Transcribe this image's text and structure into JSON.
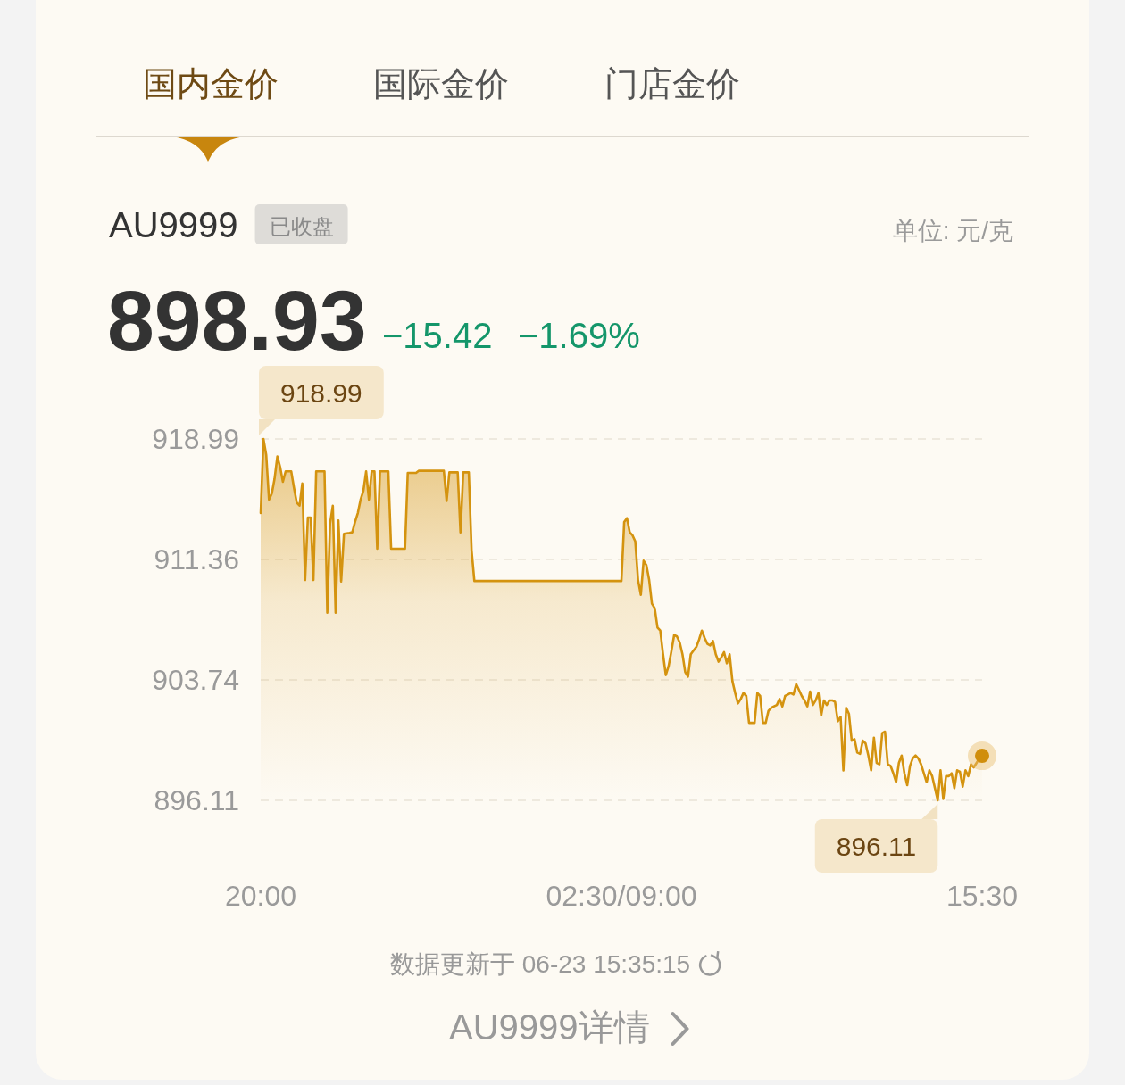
{
  "chart_data": {
    "type": "area",
    "title": "AU9999",
    "subtitle": "已收盘",
    "categories": [
      "20:00",
      null,
      null,
      null,
      null,
      null,
      null,
      null,
      null,
      null,
      null,
      null,
      null,
      null,
      null,
      null,
      null,
      null,
      null,
      null,
      null,
      null,
      null,
      null,
      null,
      null,
      null,
      null,
      null,
      null,
      null,
      null,
      null,
      null,
      null,
      null,
      null,
      null,
      null,
      null,
      null,
      null,
      null,
      null,
      null,
      null,
      null,
      null,
      null,
      null,
      null,
      null,
      null,
      null,
      null,
      null,
      null,
      null,
      null,
      null,
      null,
      null,
      null,
      null,
      null,
      null,
      null,
      null,
      null,
      null,
      null,
      null,
      null,
      null,
      null,
      null,
      null,
      null,
      null,
      null,
      null,
      null,
      null,
      null,
      null,
      null,
      null,
      null,
      null,
      null,
      null,
      null,
      null,
      null,
      null,
      null,
      null,
      null,
      null,
      null,
      null,
      null,
      null,
      null,
      null,
      null,
      null,
      null,
      null,
      null,
      null,
      null,
      null,
      null,
      null,
      null,
      null,
      null,
      null,
      null,
      null,
      null,
      null,
      null,
      null,
      null,
      null,
      null,
      null,
      null,
      "02:30/09:00",
      null,
      null,
      null,
      null,
      null,
      null,
      null,
      null,
      null,
      null,
      null,
      null,
      null,
      null,
      null,
      null,
      null,
      null,
      null,
      null,
      null,
      null,
      null,
      null,
      null,
      null,
      null,
      null,
      null,
      null,
      null,
      null,
      null,
      null,
      null,
      null,
      null,
      null,
      null,
      null,
      null,
      null,
      null,
      null,
      null,
      null,
      null,
      null,
      null,
      null,
      null,
      null,
      null,
      null,
      null,
      null,
      null,
      null,
      null,
      null,
      null,
      null,
      null,
      null,
      null,
      null,
      null,
      null,
      null,
      null,
      null,
      null,
      null,
      null,
      null,
      null,
      null,
      null,
      null,
      null,
      null,
      null,
      null,
      null,
      null,
      null,
      null,
      null,
      null,
      null,
      null,
      null,
      null,
      null,
      null,
      null,
      null,
      null,
      null,
      null,
      null,
      null,
      null,
      null,
      null,
      null,
      null,
      null,
      null,
      null,
      null,
      null,
      null,
      null,
      null,
      null,
      null,
      null,
      null,
      null,
      null,
      null,
      null,
      null,
      null,
      null,
      null,
      null,
      null,
      "15:30"
    ],
    "series": [
      {
        "color": "#d4930f",
        "values": [
          914.3,
          918.99,
          917.97,
          915.15,
          915.53,
          916.47,
          917.88,
          917.22,
          916.28,
          916.94,
          916.94,
          916.94,
          915.9,
          914.96,
          914.77,
          916.18,
          910.06,
          914.02,
          914.02,
          910.06,
          916.94,
          916.94,
          916.94,
          916.94,
          907.99,
          913.64,
          914.77,
          907.99,
          913.83,
          909.97,
          912.98,
          913.02,
          913.04,
          913.08,
          913.74,
          914.3,
          915.15,
          915.71,
          916.94,
          915.15,
          916.94,
          916.94,
          912.04,
          916.94,
          916.94,
          916.94,
          916.94,
          912.04,
          912.04,
          912.04,
          912.04,
          912.04,
          912.04,
          916.84,
          916.84,
          916.84,
          916.84,
          916.98,
          916.98,
          916.98,
          916.98,
          916.98,
          916.98,
          916.98,
          916.98,
          916.98,
          916.98,
          915.06,
          916.88,
          916.88,
          916.88,
          916.88,
          913.08,
          916.88,
          916.88,
          916.88,
          911.95,
          910.0,
          910.0,
          910.0,
          910.0,
          910.0,
          910.0,
          910.0,
          910.0,
          910.0,
          910.0,
          910.0,
          910.0,
          910.0,
          910.0,
          910.0,
          910.0,
          910.0,
          910.0,
          910.0,
          910.0,
          910.0,
          910.0,
          910.0,
          910.0,
          910.0,
          910.0,
          910.0,
          910.0,
          910.0,
          910.0,
          910.0,
          910.0,
          910.0,
          910.0,
          910.0,
          910.0,
          910.0,
          910.0,
          910.0,
          910.0,
          910.0,
          910.0,
          910.0,
          910.0,
          910.0,
          910.0,
          910.0,
          910.0,
          910.0,
          910.0,
          910.0,
          910.0,
          910.0,
          910.0,
          913.74,
          913.98,
          913.08,
          912.89,
          912.51,
          910.06,
          909.12,
          911.29,
          911.0,
          910.06,
          908.56,
          908.28,
          907.05,
          906.86,
          905.36,
          904.04,
          904.6,
          905.54,
          906.58,
          906.49,
          906.11,
          905.36,
          904.23,
          903.94,
          905.36,
          905.6,
          905.83,
          906.3,
          906.86,
          906.39,
          906.02,
          905.92,
          906.2,
          905.36,
          904.89,
          905.17,
          905.49,
          904.79,
          905.36,
          903.66,
          902.91,
          902.25,
          902.53,
          902.91,
          902.72,
          901.02,
          901.02,
          901.02,
          902.91,
          902.72,
          901.02,
          901.02,
          901.78,
          901.97,
          902.06,
          902.15,
          902.53,
          902.06,
          902.72,
          902.81,
          902.91,
          902.81,
          903.47,
          903.1,
          902.72,
          902.44,
          902.06,
          903.0,
          902.15,
          902.44,
          902.91,
          901.49,
          902.44,
          902.15,
          902.44,
          902.44,
          902.34,
          901.12,
          901.4,
          898.01,
          901.97,
          901.59,
          899.89,
          899.99,
          899.14,
          899.05,
          899.89,
          899.71,
          898.95,
          898.01,
          900.08,
          898.48,
          898.39,
          900.37,
          900.46,
          898.39,
          898.29,
          897.82,
          897.26,
          898.48,
          898.95,
          897.82,
          897.07,
          898.29,
          898.77,
          898.95,
          898.77,
          898.39,
          897.82,
          897.26,
          898.01,
          897.64,
          896.88,
          896.11,
          898.01,
          896.2,
          897.64,
          897.64,
          897.82,
          896.88,
          898.01,
          897.92,
          896.98,
          898.01,
          897.64,
          898.39,
          898.2,
          898.48,
          898.77,
          898.93
        ]
      },
      {
        "type": "scatter",
        "color": "#d08e0c",
        "values": [
          null,
          null,
          null,
          null,
          null,
          null,
          null,
          null,
          null,
          null,
          null,
          null,
          null,
          null,
          null,
          null,
          null,
          null,
          null,
          null,
          null,
          null,
          null,
          null,
          null,
          null,
          null,
          null,
          null,
          null,
          null,
          null,
          null,
          null,
          null,
          null,
          null,
          null,
          null,
          null,
          null,
          null,
          null,
          null,
          null,
          null,
          null,
          null,
          null,
          null,
          null,
          null,
          null,
          null,
          null,
          null,
          null,
          null,
          null,
          null,
          null,
          null,
          null,
          null,
          null,
          null,
          null,
          null,
          null,
          null,
          null,
          null,
          null,
          null,
          null,
          null,
          null,
          null,
          null,
          null,
          null,
          null,
          null,
          null,
          null,
          null,
          null,
          null,
          null,
          null,
          null,
          null,
          null,
          null,
          null,
          null,
          null,
          null,
          null,
          null,
          null,
          null,
          null,
          null,
          null,
          null,
          null,
          null,
          null,
          null,
          null,
          null,
          null,
          null,
          null,
          null,
          null,
          null,
          null,
          null,
          null,
          null,
          null,
          null,
          null,
          null,
          null,
          null,
          null,
          null,
          null,
          null,
          null,
          null,
          null,
          null,
          null,
          null,
          null,
          null,
          null,
          null,
          null,
          null,
          null,
          null,
          null,
          null,
          null,
          null,
          null,
          null,
          null,
          null,
          null,
          null,
          null,
          null,
          null,
          null,
          null,
          null,
          null,
          null,
          null,
          null,
          null,
          null,
          null,
          null,
          null,
          null,
          null,
          null,
          null,
          null,
          null,
          null,
          null,
          null,
          null,
          null,
          null,
          null,
          null,
          null,
          null,
          null,
          null,
          null,
          null,
          null,
          null,
          null,
          null,
          null,
          null,
          null,
          null,
          null,
          null,
          null,
          null,
          null,
          null,
          null,
          null,
          null,
          null,
          null,
          null,
          null,
          null,
          null,
          null,
          null,
          null,
          null,
          null,
          null,
          null,
          null,
          null,
          null,
          null,
          null,
          null,
          null,
          null,
          null,
          null,
          null,
          null,
          null,
          null,
          null,
          null,
          null,
          null,
          null,
          null,
          null,
          null,
          null,
          null,
          null,
          null,
          null,
          null,
          null,
          null,
          null,
          null,
          null,
          null,
          null,
          null,
          null,
          null,
          null,
          898.93
        ]
      }
    ],
    "ylim": [
      896.11,
      918.99
    ],
    "yticks": [
      896.11,
      903.74,
      911.36,
      918.99
    ],
    "grid": "y",
    "annotations": [
      "国内金价",
      "国际金价",
      "门店金价",
      "单位: 元/克",
      "898.93",
      "−15.42",
      "−1.69%",
      "918.99",
      {
        "text": "896.11",
        "y": 896.11
      },
      "数据更新于 06-23 15:35:15",
      "AU9999详情"
    ]
  }
}
